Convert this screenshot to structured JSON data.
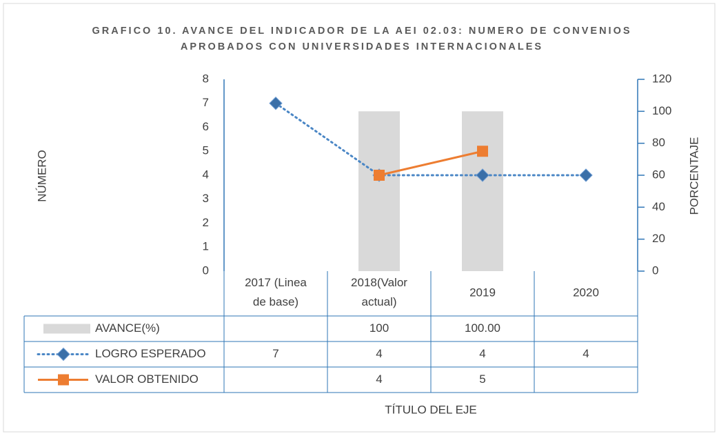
{
  "chart_data": {
    "type": "combo",
    "title": "GRAFICO 10. AVANCE DEL INDICADOR  DE LA AEI 02.03: NUMERO DE CONVENIOS APROBADOS CON UNIVERSIDADES INTERNACIONALES",
    "y_label": "NÚMERO",
    "y2_label": "PORCENTAJE",
    "x_label": "TÍTULO DEL EJE",
    "categories": [
      "2017 (Linea de base)",
      "2018(Valor actual)",
      "2019",
      "2020"
    ],
    "series": [
      {
        "name": "AVANCE(%)",
        "type": "bar",
        "axis": "y2",
        "color": "#d9d9d9",
        "values": [
          null,
          100,
          100,
          null
        ],
        "value_labels": [
          null,
          "100",
          "100.00",
          null
        ]
      },
      {
        "name": "LOGRO ESPERADO",
        "type": "line",
        "color": "#4a86c5",
        "marker": "diamond",
        "dotted": true,
        "values": [
          7,
          4,
          4,
          4
        ]
      },
      {
        "name": "VALOR OBTENIDO",
        "type": "line",
        "color": "#ed7d31",
        "marker": "square",
        "values": [
          null,
          4,
          5,
          null
        ]
      }
    ],
    "ylim": [
      0,
      8
    ],
    "yticks": [
      0,
      1,
      2,
      3,
      4,
      5,
      6,
      7,
      8
    ],
    "y2lim": [
      0,
      120
    ],
    "y2ticks": [
      0,
      20,
      40,
      60,
      80,
      100,
      120
    ],
    "data_table": true
  }
}
